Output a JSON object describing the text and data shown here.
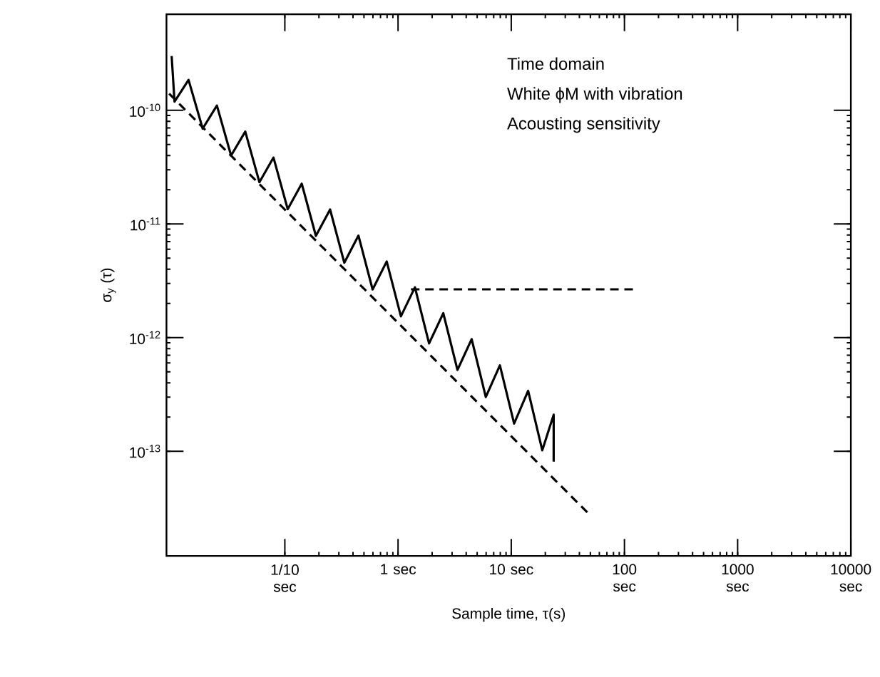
{
  "chart_data": {
    "type": "line",
    "xlabel": "Sample time, τ(s)",
    "ylabel": "σ$_{y}$ (τ)",
    "annotations": [
      "Time domain",
      "White ϕM with vibration",
      "Acousting sensitivity"
    ],
    "log": "xy",
    "marker": "none",
    "xlim": [
      0.009,
      10000
    ],
    "ylim": [
      1.2e-14,
      7e-10
    ],
    "xticks": [
      {
        "value": 0.1,
        "label": "1/10 sec"
      },
      {
        "value": 1,
        "label": "1 sec"
      },
      {
        "value": 10,
        "label": "10 sec"
      },
      {
        "value": 100,
        "label": "100 sec"
      },
      {
        "value": 1000,
        "label": "1000 sec"
      },
      {
        "value": 10000,
        "label": "10000 sec"
      }
    ],
    "yticks": [
      {
        "value": 1e-13,
        "label": "10$^{-13}$"
      },
      {
        "value": 1e-12,
        "label": "10$^{-12}$"
      },
      {
        "value": 1e-11,
        "label": "10$^{-11}$"
      },
      {
        "value": 1e-10,
        "label": "10$^{-10}$"
      }
    ],
    "series": [
      {
        "color": "#000000",
        "line_style": "solid",
        "x": [
          0.01,
          0.0106,
          0.0141,
          0.0188,
          0.0251,
          0.0335,
          0.0447,
          0.0596,
          0.0794,
          0.106,
          0.141,
          0.188,
          0.251,
          0.335,
          0.447,
          0.596,
          0.794,
          1.06,
          1.41,
          1.88,
          2.51,
          3.35,
          4.47,
          5.96,
          7.94,
          10.6,
          14.1,
          18.8,
          23.7,
          23.7
        ],
        "values": [
          3e-10,
          1.19e-10,
          1.85e-10,
          6.9e-11,
          1.1e-10,
          4e-11,
          6.5e-11,
          2.33e-11,
          3.84e-11,
          1.35e-11,
          2.26e-11,
          7.85e-12,
          1.34e-11,
          4.56e-12,
          7.9e-12,
          2.65e-12,
          4.68e-12,
          1.54e-12,
          2.77e-12,
          8.9e-13,
          1.64e-12,
          5.2e-13,
          9.7e-13,
          3e-13,
          5.7e-13,
          1.75e-13,
          3.4e-13,
          1.02e-13,
          2.1e-13,
          8.1e-14
        ]
      },
      {
        "color": "#000000",
        "line_style": "dashed",
        "x": [
          0.0095,
          48.7
        ],
        "values": [
          1.4e-10,
          2.8e-14
        ]
      },
      {
        "color": "#000000",
        "line_style": "dashed",
        "x": [
          1.3,
          130
        ],
        "values": [
          2.66e-12,
          2.66e-12
        ]
      }
    ]
  }
}
